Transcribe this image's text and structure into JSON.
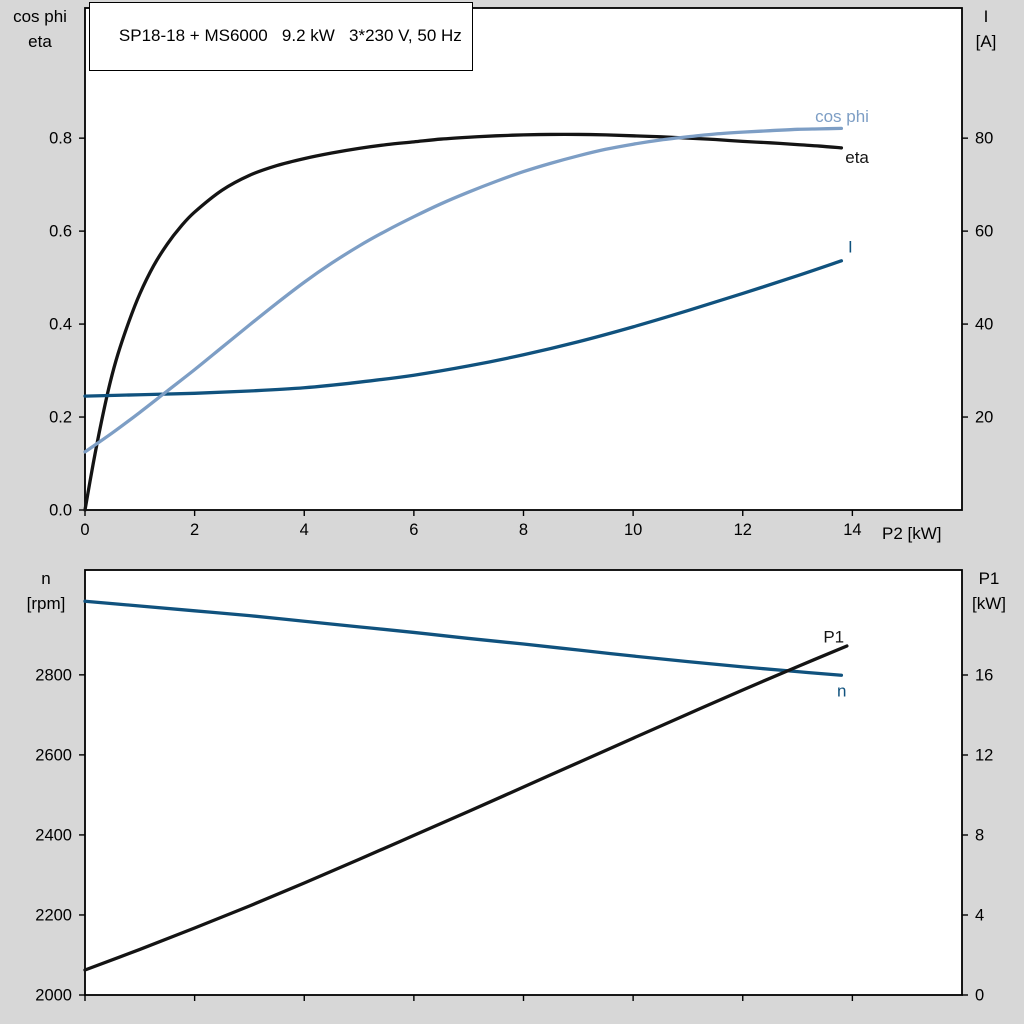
{
  "page": {
    "background": "#d7d7d7"
  },
  "labels": {
    "top_left_line1": "cos phi",
    "top_left_line2": "eta",
    "top_right_line1": "I",
    "top_right_line2": "[A]",
    "x_axis": "P2 [kW]",
    "bottom_left_line1": "n",
    "bottom_left_line2": "[rpm]",
    "bottom_right_line1": "P1",
    "bottom_right_line2": "[kW]"
  },
  "colors": {
    "background": "#d7d7d7",
    "plot_bg": "#ffffff",
    "frame": "#000000",
    "black_curve": "#141414",
    "light_blue_curve": "#7d9ec5",
    "dark_blue_curve": "#10527e"
  },
  "chart_data": [
    {
      "type": "line",
      "title": "SP18-18 + MS6000   9.2 kW   3*230 V, 50 Hz",
      "xlabel": "P2 [kW]",
      "x_range": [
        0,
        16
      ],
      "x_ticks": [
        0,
        2,
        4,
        6,
        8,
        10,
        12,
        14
      ],
      "x_tick_labels": [
        "0",
        "2",
        "4",
        "6",
        "8",
        "10",
        "12",
        "14"
      ],
      "x_tick_labels_visible": true,
      "left_axis": {
        "name": "cos phi / eta",
        "range": [
          0,
          1.08
        ],
        "ticks": [
          0.0,
          0.2,
          0.4,
          0.6,
          0.8
        ],
        "tick_labels": [
          "0.0",
          "0.2",
          "0.4",
          "0.6",
          "0.8"
        ]
      },
      "right_axis": {
        "name": "I [A]",
        "range": [
          0,
          108
        ],
        "ticks": [
          20,
          40,
          60,
          80
        ],
        "tick_labels": [
          "20",
          "40",
          "60",
          "80"
        ]
      },
      "grid": false,
      "series": [
        {
          "name": "eta",
          "axis": "left",
          "color": "#141414",
          "label": "eta",
          "label_at": [
            13.87,
            0.758
          ],
          "points": [
            [
              0,
              0
            ],
            [
              0.15,
              0.1
            ],
            [
              0.3,
              0.19
            ],
            [
              0.45,
              0.27
            ],
            [
              0.6,
              0.335
            ],
            [
              0.8,
              0.405
            ],
            [
              1.0,
              0.465
            ],
            [
              1.25,
              0.525
            ],
            [
              1.5,
              0.572
            ],
            [
              1.75,
              0.61
            ],
            [
              2.0,
              0.641
            ],
            [
              2.5,
              0.688
            ],
            [
              3.0,
              0.72
            ],
            [
              3.5,
              0.741
            ],
            [
              4.0,
              0.756
            ],
            [
              4.5,
              0.768
            ],
            [
              5.0,
              0.778
            ],
            [
              5.5,
              0.786
            ],
            [
              6.0,
              0.792
            ],
            [
              6.5,
              0.798
            ],
            [
              7.0,
              0.802
            ],
            [
              7.5,
              0.805
            ],
            [
              8.0,
              0.807
            ],
            [
              8.5,
              0.808
            ],
            [
              9.0,
              0.808
            ],
            [
              9.5,
              0.807
            ],
            [
              10.0,
              0.805
            ],
            [
              10.5,
              0.803
            ],
            [
              11.0,
              0.8
            ],
            [
              11.5,
              0.797
            ],
            [
              12.0,
              0.793
            ],
            [
              12.5,
              0.79
            ],
            [
              13.0,
              0.786
            ],
            [
              13.4,
              0.783
            ],
            [
              13.8,
              0.779
            ]
          ]
        },
        {
          "name": "I",
          "axis": "right",
          "color": "#10527e",
          "label": "I",
          "label_at": [
            13.92,
            56.6
          ],
          "points": [
            [
              0,
              24.5
            ],
            [
              1,
              24.8
            ],
            [
              2,
              25.1
            ],
            [
              3,
              25.6
            ],
            [
              4,
              26.3
            ],
            [
              5,
              27.5
            ],
            [
              6,
              29.0
            ],
            [
              7,
              31.0
            ],
            [
              8,
              33.4
            ],
            [
              9,
              36.2
            ],
            [
              10,
              39.4
            ],
            [
              11,
              42.9
            ],
            [
              12,
              46.6
            ],
            [
              13,
              50.4
            ],
            [
              13.8,
              53.6
            ]
          ]
        },
        {
          "name": "cos phi",
          "axis": "left",
          "color": "#7d9ec5",
          "label": "cos phi",
          "label_at": [
            13.32,
            0.847
          ],
          "points": [
            [
              0,
              0.125
            ],
            [
              0.5,
              0.166
            ],
            [
              1.0,
              0.21
            ],
            [
              1.5,
              0.256
            ],
            [
              2.0,
              0.302
            ],
            [
              2.5,
              0.35
            ],
            [
              3.0,
              0.398
            ],
            [
              3.5,
              0.445
            ],
            [
              4.0,
              0.49
            ],
            [
              4.5,
              0.531
            ],
            [
              5.0,
              0.568
            ],
            [
              5.5,
              0.601
            ],
            [
              6.0,
              0.631
            ],
            [
              6.5,
              0.659
            ],
            [
              7.0,
              0.684
            ],
            [
              7.5,
              0.707
            ],
            [
              8.0,
              0.728
            ],
            [
              8.5,
              0.746
            ],
            [
              9.0,
              0.762
            ],
            [
              9.5,
              0.776
            ],
            [
              10.0,
              0.787
            ],
            [
              10.5,
              0.796
            ],
            [
              11.0,
              0.803
            ],
            [
              11.5,
              0.809
            ],
            [
              12.0,
              0.813
            ],
            [
              12.5,
              0.816
            ],
            [
              13.0,
              0.819
            ],
            [
              13.4,
              0.82
            ],
            [
              13.8,
              0.821
            ]
          ]
        }
      ]
    },
    {
      "type": "line",
      "title": "",
      "xlabel": "",
      "x_range": [
        0,
        16
      ],
      "x_ticks": [
        0,
        2,
        4,
        6,
        8,
        10,
        12,
        14
      ],
      "x_tick_labels": [
        "0",
        "2",
        "4",
        "6",
        "8",
        "10",
        "12",
        "14"
      ],
      "x_tick_labels_visible": false,
      "left_axis": {
        "name": "n [rpm]",
        "range": [
          2000,
          3062
        ],
        "ticks": [
          2000,
          2200,
          2400,
          2600,
          2800
        ],
        "tick_labels": [
          "2000",
          "2200",
          "2400",
          "2600",
          "2800"
        ]
      },
      "right_axis": {
        "name": "P1 [kW]",
        "range": [
          0,
          21.25
        ],
        "ticks": [
          0,
          4,
          8,
          12,
          16
        ],
        "tick_labels": [
          "0",
          "4",
          "8",
          "12",
          "16"
        ]
      },
      "grid": false,
      "series": [
        {
          "name": "n",
          "axis": "left",
          "color": "#10527e",
          "label": "n",
          "label_at": [
            13.72,
            2760
          ],
          "points": [
            [
              0,
              2984
            ],
            [
              1,
              2972
            ],
            [
              2,
              2960
            ],
            [
              3,
              2948
            ],
            [
              4,
              2934
            ],
            [
              5,
              2920
            ],
            [
              6,
              2906
            ],
            [
              7,
              2891
            ],
            [
              8,
              2877
            ],
            [
              9,
              2862
            ],
            [
              10,
              2847
            ],
            [
              11,
              2833
            ],
            [
              12,
              2820
            ],
            [
              13,
              2808
            ],
            [
              13.8,
              2799
            ]
          ]
        },
        {
          "name": "P1",
          "axis": "right",
          "color": "#141414",
          "label": "P1",
          "label_at": [
            13.47,
            17.9
          ],
          "points": [
            [
              0,
              1.25
            ],
            [
              1,
              2.28
            ],
            [
              2,
              3.35
            ],
            [
              3,
              4.45
            ],
            [
              4,
              5.6
            ],
            [
              5,
              6.78
            ],
            [
              6,
              7.98
            ],
            [
              7,
              9.18
            ],
            [
              8,
              10.4
            ],
            [
              9,
              11.62
            ],
            [
              10,
              12.84
            ],
            [
              11,
              14.05
            ],
            [
              12,
              15.25
            ],
            [
              13,
              16.42
            ],
            [
              13.9,
              17.45
            ]
          ]
        }
      ]
    }
  ]
}
